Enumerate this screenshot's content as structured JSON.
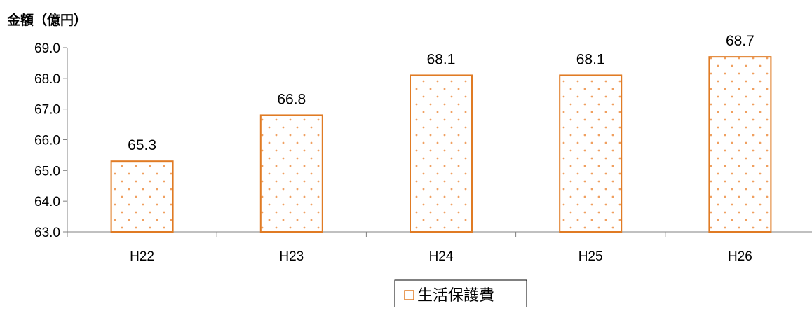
{
  "chart_data": {
    "type": "bar",
    "title": "",
    "unit_label": "金額（億円）",
    "xlabel": "",
    "ylabel": "",
    "categories": [
      "H22",
      "H23",
      "H24",
      "H25",
      "H26"
    ],
    "series": [
      {
        "name": "生活保護費",
        "values": [
          65.3,
          66.8,
          68.1,
          68.1,
          68.7
        ]
      }
    ],
    "ylim": [
      63.0,
      69.0
    ],
    "yticks": [
      "63.0",
      "64.0",
      "65.0",
      "66.0",
      "67.0",
      "68.0",
      "69.0"
    ],
    "data_labels": [
      "65.3",
      "66.8",
      "68.1",
      "68.1",
      "68.7"
    ],
    "grid": false,
    "legend": {
      "position": "bottom",
      "entries": [
        "生活保護費"
      ]
    },
    "colors": {
      "bar_border": "#E07B24",
      "bar_dots": "#F0A060",
      "axis": "#808080"
    }
  }
}
